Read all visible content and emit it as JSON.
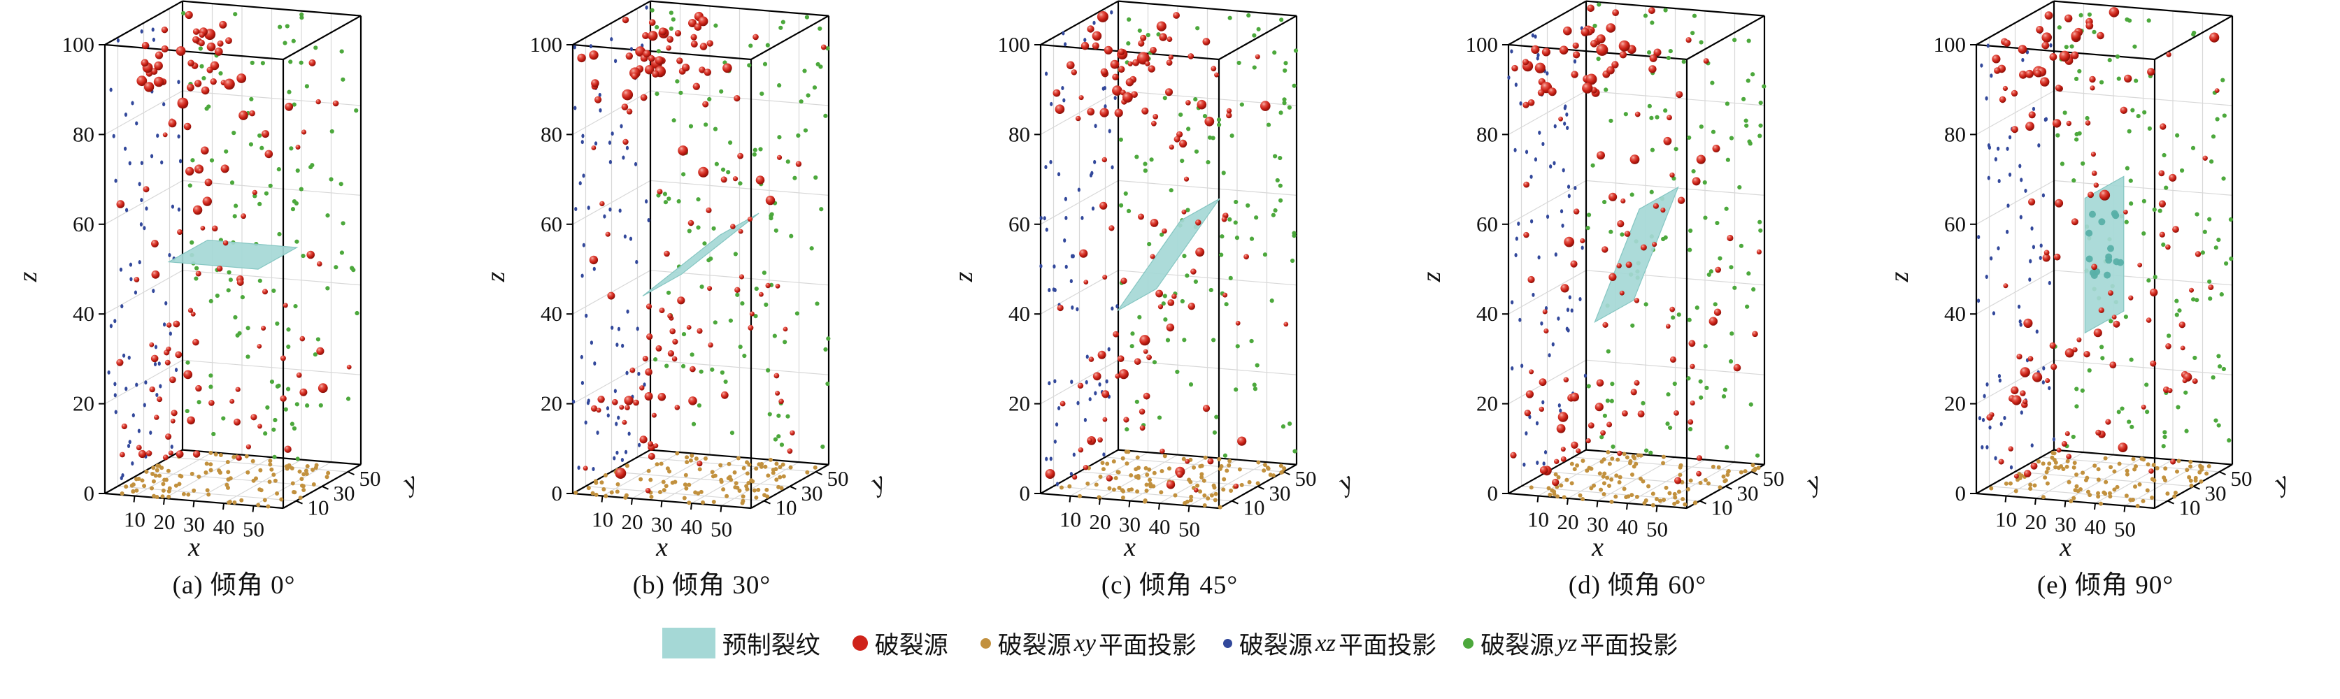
{
  "chart_data": {
    "type": "scatter",
    "subtype": "3d-scatter-panel-row",
    "title": "",
    "panels": [
      {
        "id": "a",
        "caption": "(a) 倾角 0°",
        "crack_dip_deg": 0
      },
      {
        "id": "b",
        "caption": "(b) 倾角 30°",
        "crack_dip_deg": 30
      },
      {
        "id": "c",
        "caption": "(c) 倾角 45°",
        "crack_dip_deg": 45
      },
      {
        "id": "d",
        "caption": "(d) 倾角 60°",
        "crack_dip_deg": 60
      },
      {
        "id": "e",
        "caption": "(e) 倾角 90°",
        "crack_dip_deg": 90
      }
    ],
    "axes": {
      "x": {
        "label": "x",
        "range": [
          0,
          60
        ],
        "ticks": [
          10,
          20,
          30,
          40,
          50
        ]
      },
      "y": {
        "label": "y",
        "range": [
          0,
          60
        ],
        "ticks": [
          10,
          30,
          50
        ]
      },
      "z": {
        "label": "z",
        "range": [
          0,
          100
        ],
        "ticks": [
          0,
          20,
          40,
          60,
          80,
          100
        ]
      }
    },
    "series": [
      {
        "name": "预制裂纹",
        "kind": "crack-plane",
        "color": "#a5d8d6",
        "edge_color": "#85c6c2",
        "center": [
          30,
          30,
          50
        ],
        "half_size": 15
      },
      {
        "name": "破裂源",
        "kind": "sphere",
        "color": "#cf231a",
        "count_per_panel": 130
      },
      {
        "name": "破裂源 xy 平面投影",
        "kind": "projection",
        "wall": "bottom z=0",
        "color": "#c2913e",
        "count_per_panel": 110
      },
      {
        "name": "破裂源 xz 平面投影",
        "kind": "projection",
        "wall": "left x=0",
        "color": "#32489b",
        "count_per_panel": 70
      },
      {
        "name": "破裂源 yz 平面投影",
        "kind": "projection",
        "wall": "back y=60",
        "color": "#4ca83c",
        "count_per_panel": 120
      }
    ],
    "render": {
      "seeds": [
        101,
        202,
        303,
        404,
        505
      ],
      "grid": true,
      "grid_color": "#d8d8d8",
      "edge_color": "#000000"
    }
  },
  "legend": {
    "items": [
      {
        "type": "patch",
        "color": "#a5d8d6",
        "size": 0,
        "pre": "预制裂纹",
        "math": "",
        "post": ""
      },
      {
        "type": "dot",
        "color": "#cf231a",
        "size": 22,
        "pre": "破裂源",
        "math": "",
        "post": ""
      },
      {
        "type": "dot",
        "color": "#c2913e",
        "size": 15,
        "pre": "破裂源",
        "math": "xy",
        "post": "平面投影"
      },
      {
        "type": "dot",
        "color": "#32489b",
        "size": 13,
        "pre": "破裂源",
        "math": "xz",
        "post": "平面投影"
      },
      {
        "type": "dot",
        "color": "#4ca83c",
        "size": 15,
        "pre": "破裂源",
        "math": "yz",
        "post": "平面投影"
      }
    ]
  }
}
